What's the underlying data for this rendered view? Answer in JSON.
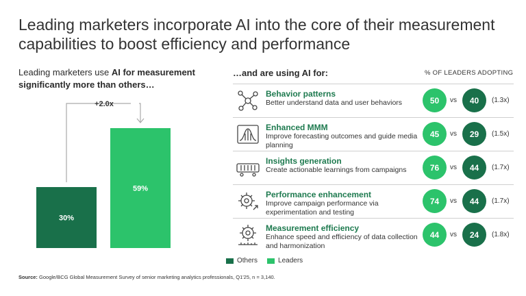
{
  "title": "Leading marketers incorporate AI into the core of their measurement capabilities to boost efficiency and performance",
  "left_heading": {
    "part1": "Leading marketers use ",
    "bold": "AI for measurement significantly more than others…"
  },
  "right_heading": "…and are using AI for:",
  "pct_heading": "% OF LEADERS ADOPTING",
  "vs_label": "vs",
  "colors": {
    "others": "#19704a",
    "leaders": "#2cc36b",
    "accent_text": "#1e7a4f",
    "icon_stroke": "#444444"
  },
  "chart_data": {
    "type": "bar",
    "categories": [
      "Others",
      "Leaders"
    ],
    "values": [
      30,
      59
    ],
    "value_labels": [
      "30%",
      "59%"
    ],
    "multiplier_label": "+2.0x",
    "ylim": [
      0,
      65
    ],
    "legend": [
      "Others",
      "Leaders"
    ]
  },
  "rows": [
    {
      "icon": "network-nodes-icon",
      "title": "Behavior patterns",
      "desc": "Better understand data and user behaviors",
      "leaders": 50,
      "others": 40,
      "ratio": "(1.3x)"
    },
    {
      "icon": "bell-curve-chart-icon",
      "title": "Enhanced MMM",
      "desc": "Improve forecasting outcomes and guide media planning",
      "leaders": 45,
      "others": 29,
      "ratio": "(1.5x)"
    },
    {
      "icon": "campaign-bars-icon",
      "title": "Insights generation",
      "desc": "Create actionable learnings from campaigns",
      "leaders": 76,
      "others": 44,
      "ratio": "(1.7x)"
    },
    {
      "icon": "performance-gear-icon",
      "title": "Performance enhancement",
      "desc": "Improve campaign performance via experimentation and testing",
      "leaders": 74,
      "others": 44,
      "ratio": "(1.7x)"
    },
    {
      "icon": "measurement-gear-icon",
      "title": "Measurement efficiency",
      "desc": "Enhance speed and efficiency of data collection and harmonization",
      "leaders": 44,
      "others": 24,
      "ratio": "(1.8x)"
    }
  ],
  "legend": {
    "others": "Others",
    "leaders": "Leaders"
  },
  "source": {
    "label": "Source:",
    "text": " Google/BCG Global Measurement Survey of senior marketing analytics professionals, Q1'25, n = 3,140."
  }
}
